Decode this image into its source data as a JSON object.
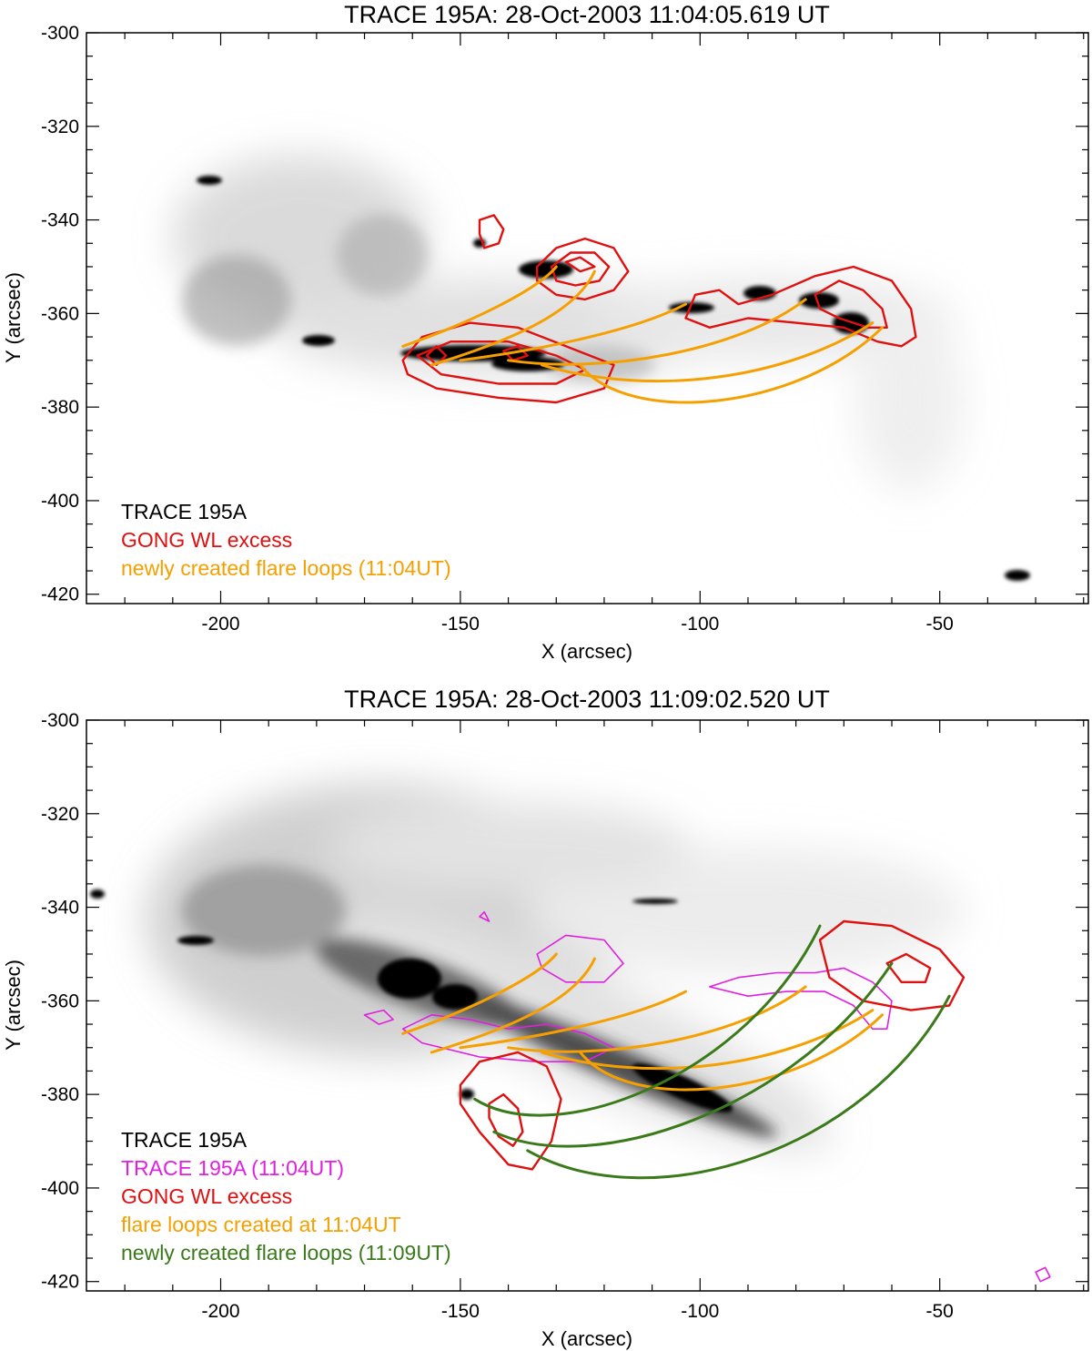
{
  "colors": {
    "black": "#000000",
    "red": "#e01010",
    "orange": "#f5a000",
    "magenta": "#e020e0",
    "green": "#3a7a1a"
  },
  "chart_data": [
    {
      "type": "image-contour",
      "title": "TRACE 195A:  28-Oct-2003 11:04:05.619 UT",
      "xlabel": "X (arcsec)",
      "ylabel": "Y (arcsec)",
      "xlim": [
        -228,
        -19
      ],
      "ylim": [
        -422,
        -300
      ],
      "xticks": [
        -200,
        -150,
        -100,
        -50
      ],
      "yticks": [
        -300,
        -320,
        -340,
        -360,
        -380,
        -400,
        -420
      ],
      "legend": [
        {
          "label": "TRACE 195A",
          "color": "#000000"
        },
        {
          "label": "GONG WL excess",
          "color": "#e01010"
        },
        {
          "label": "newly created flare loops (11:04UT)",
          "color": "#f5a000"
        }
      ],
      "series": [
        {
          "name": "GONG WL excess",
          "color": "#e01010",
          "contours": [
            [
              [
                -146,
                -340
              ],
              [
                -143,
                -339
              ],
              [
                -141,
                -342
              ],
              [
                -142,
                -345
              ],
              [
                -145,
                -346
              ],
              [
                -146,
                -343
              ]
            ],
            [
              [
                -134,
                -350
              ],
              [
                -130,
                -346
              ],
              [
                -124,
                -344
              ],
              [
                -118,
                -346
              ],
              [
                -115,
                -351
              ],
              [
                -118,
                -355
              ],
              [
                -124,
                -357
              ],
              [
                -130,
                -356
              ],
              [
                -134,
                -353
              ]
            ],
            [
              [
                -131,
                -350
              ],
              [
                -127,
                -347
              ],
              [
                -122,
                -347
              ],
              [
                -119,
                -350
              ],
              [
                -121,
                -353
              ],
              [
                -126,
                -354
              ],
              [
                -130,
                -353
              ]
            ],
            [
              [
                -128,
                -349
              ],
              [
                -125,
                -348
              ],
              [
                -122,
                -350
              ],
              [
                -125,
                -351
              ]
            ],
            [
              [
                -103,
                -361
              ],
              [
                -101,
                -356
              ],
              [
                -96,
                -355
              ],
              [
                -92,
                -358
              ],
              [
                -85,
                -356
              ],
              [
                -76,
                -352
              ],
              [
                -68,
                -350
              ],
              [
                -60,
                -353
              ],
              [
                -56,
                -359
              ],
              [
                -55,
                -365
              ],
              [
                -58,
                -367
              ],
              [
                -63,
                -366
              ],
              [
                -70,
                -363
              ],
              [
                -80,
                -362
              ],
              [
                -90,
                -361
              ],
              [
                -98,
                -363
              ]
            ],
            [
              [
                -76,
                -356
              ],
              [
                -71,
                -353
              ],
              [
                -66,
                -355
              ],
              [
                -62,
                -359
              ],
              [
                -61,
                -363
              ],
              [
                -65,
                -363
              ],
              [
                -71,
                -361
              ],
              [
                -75,
                -359
              ]
            ],
            [
              [
                -162,
                -370
              ],
              [
                -158,
                -365
              ],
              [
                -148,
                -362
              ],
              [
                -138,
                -363
              ],
              [
                -128,
                -367
              ],
              [
                -118,
                -371
              ],
              [
                -120,
                -376
              ],
              [
                -130,
                -379
              ],
              [
                -142,
                -378
              ],
              [
                -155,
                -376
              ],
              [
                -161,
                -373
              ]
            ],
            [
              [
                -159,
                -369
              ],
              [
                -152,
                -366
              ],
              [
                -140,
                -366
              ],
              [
                -130,
                -369
              ],
              [
                -124,
                -372
              ],
              [
                -130,
                -375
              ],
              [
                -142,
                -375
              ],
              [
                -154,
                -373
              ]
            ],
            [
              [
                -157,
                -369
              ],
              [
                -155,
                -367
              ],
              [
                -153,
                -369
              ],
              [
                -155,
                -371
              ]
            ],
            [
              [
                -141,
                -368
              ],
              [
                -138,
                -367
              ],
              [
                -136,
                -369
              ],
              [
                -139,
                -370
              ]
            ]
          ]
        },
        {
          "name": "newly created flare loops (11:04UT)",
          "color": "#f5a000",
          "loops": [
            [
              [
                -162,
                -367
              ],
              [
                -148,
                -362
              ],
              [
                -134,
                -355
              ],
              [
                -130,
                -350
              ]
            ],
            [
              [
                -156,
                -371
              ],
              [
                -140,
                -366
              ],
              [
                -126,
                -360
              ],
              [
                -122,
                -351
              ]
            ],
            [
              [
                -150,
                -370
              ],
              [
                -135,
                -368
              ],
              [
                -114,
                -364
              ],
              [
                -103,
                -358
              ]
            ],
            [
              [
                -140,
                -370
              ],
              [
                -120,
                -373
              ],
              [
                -92,
                -368
              ],
              [
                -78,
                -357
              ]
            ],
            [
              [
                -133,
                -371
              ],
              [
                -110,
                -378
              ],
              [
                -82,
                -374
              ],
              [
                -64,
                -362
              ]
            ],
            [
              [
                -125,
                -371
              ],
              [
                -115,
                -384
              ],
              [
                -80,
                -381
              ],
              [
                -62,
                -363
              ]
            ]
          ]
        }
      ]
    },
    {
      "type": "image-contour",
      "title": "TRACE 195A:  28-Oct-2003 11:09:02.520 UT",
      "xlabel": "X (arcsec)",
      "ylabel": "Y (arcsec)",
      "xlim": [
        -228,
        -19
      ],
      "ylim": [
        -422,
        -300
      ],
      "xticks": [
        -200,
        -150,
        -100,
        -50
      ],
      "yticks": [
        -300,
        -320,
        -340,
        -360,
        -380,
        -400,
        -420
      ],
      "legend": [
        {
          "label": "TRACE 195A",
          "color": "#000000"
        },
        {
          "label": "TRACE 195A (11:04UT)",
          "color": "#e020e0"
        },
        {
          "label": "GONG WL excess",
          "color": "#e01010"
        },
        {
          "label": "flare loops created at 11:04UT",
          "color": "#f5a000"
        },
        {
          "label": "newly created flare loops (11:09UT)",
          "color": "#3a7a1a"
        }
      ],
      "series": [
        {
          "name": "TRACE 195A (11:04UT)",
          "color": "#e020e0",
          "contours": [
            [
              [
                -134,
                -350
              ],
              [
                -128,
                -346
              ],
              [
                -120,
                -347
              ],
              [
                -116,
                -352
              ],
              [
                -120,
                -356
              ],
              [
                -128,
                -356
              ],
              [
                -133,
                -353
              ]
            ],
            [
              [
                -162,
                -366
              ],
              [
                -156,
                -363
              ],
              [
                -148,
                -364
              ],
              [
                -140,
                -366
              ],
              [
                -132,
                -365
              ],
              [
                -124,
                -367
              ],
              [
                -118,
                -370
              ],
              [
                -124,
                -373
              ],
              [
                -134,
                -373
              ],
              [
                -146,
                -372
              ],
              [
                -158,
                -369
              ]
            ],
            [
              [
                -98,
                -357
              ],
              [
                -92,
                -355
              ],
              [
                -84,
                -354
              ],
              [
                -76,
                -354
              ],
              [
                -70,
                -353
              ],
              [
                -64,
                -356
              ],
              [
                -60,
                -360
              ],
              [
                -61,
                -366
              ],
              [
                -64,
                -366
              ],
              [
                -68,
                -361
              ],
              [
                -74,
                -358
              ],
              [
                -82,
                -358
              ],
              [
                -90,
                -359
              ]
            ],
            [
              [
                -170,
                -363
              ],
              [
                -166,
                -362
              ],
              [
                -164,
                -364
              ],
              [
                -167,
                -365
              ]
            ],
            [
              [
                -146,
                -342
              ],
              [
                -145,
                -341
              ],
              [
                -144,
                -343
              ]
            ],
            [
              [
                -30,
                -418
              ],
              [
                -28,
                -417
              ],
              [
                -27,
                -419
              ],
              [
                -29,
                -420
              ]
            ]
          ]
        },
        {
          "name": "GONG WL excess",
          "color": "#e01010",
          "contours": [
            [
              [
                -150,
                -378
              ],
              [
                -146,
                -373
              ],
              [
                -138,
                -371
              ],
              [
                -132,
                -374
              ],
              [
                -129,
                -381
              ],
              [
                -131,
                -390
              ],
              [
                -135,
                -396
              ],
              [
                -140,
                -395
              ],
              [
                -146,
                -388
              ],
              [
                -150,
                -382
              ]
            ],
            [
              [
                -144,
                -382
              ],
              [
                -141,
                -380
              ],
              [
                -138,
                -383
              ],
              [
                -137,
                -388
              ],
              [
                -139,
                -391
              ],
              [
                -142,
                -389
              ],
              [
                -144,
                -385
              ]
            ],
            [
              [
                -75,
                -347
              ],
              [
                -70,
                -343
              ],
              [
                -60,
                -344
              ],
              [
                -50,
                -349
              ],
              [
                -45,
                -355
              ],
              [
                -48,
                -361
              ],
              [
                -56,
                -362
              ],
              [
                -66,
                -360
              ],
              [
                -73,
                -355
              ]
            ],
            [
              [
                -61,
                -352
              ],
              [
                -57,
                -350
              ],
              [
                -52,
                -353
              ],
              [
                -53,
                -356
              ],
              [
                -58,
                -356
              ]
            ]
          ]
        },
        {
          "name": "flare loops created at 11:04UT",
          "color": "#f5a000",
          "loops": [
            [
              [
                -162,
                -367
              ],
              [
                -148,
                -362
              ],
              [
                -134,
                -355
              ],
              [
                -130,
                -350
              ]
            ],
            [
              [
                -156,
                -371
              ],
              [
                -140,
                -366
              ],
              [
                -126,
                -360
              ],
              [
                -122,
                -351
              ]
            ],
            [
              [
                -150,
                -370
              ],
              [
                -135,
                -368
              ],
              [
                -114,
                -364
              ],
              [
                -103,
                -358
              ]
            ],
            [
              [
                -140,
                -370
              ],
              [
                -120,
                -373
              ],
              [
                -92,
                -368
              ],
              [
                -78,
                -357
              ]
            ],
            [
              [
                -133,
                -371
              ],
              [
                -110,
                -378
              ],
              [
                -82,
                -374
              ],
              [
                -64,
                -362
              ]
            ],
            [
              [
                -125,
                -371
              ],
              [
                -115,
                -384
              ],
              [
                -80,
                -381
              ],
              [
                -62,
                -363
              ]
            ]
          ]
        },
        {
          "name": "newly created flare loops (11:09UT)",
          "color": "#3a7a1a",
          "loops": [
            [
              [
                -147,
                -381
              ],
              [
                -130,
                -392
              ],
              [
                -90,
                -376
              ],
              [
                -75,
                -344
              ]
            ],
            [
              [
                -143,
                -388
              ],
              [
                -122,
                -398
              ],
              [
                -80,
                -383
              ],
              [
                -60,
                -352
              ]
            ],
            [
              [
                -136,
                -392
              ],
              [
                -110,
                -407
              ],
              [
                -65,
                -392
              ],
              [
                -48,
                -359
              ]
            ]
          ]
        }
      ]
    }
  ]
}
